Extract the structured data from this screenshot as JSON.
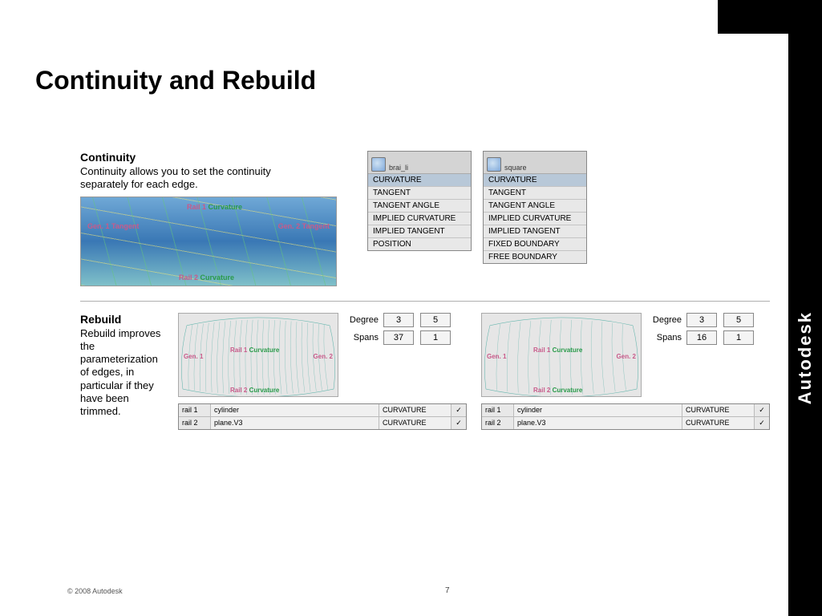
{
  "title": "Continuity and Rebuild",
  "continuity": {
    "heading": "Continuity",
    "text": "Continuity allows you to set the continuity separately for each edge.",
    "labels": {
      "gen1": "Gen. 1 Tangent",
      "gen2": "Gen. 2 Tangent",
      "rail1_a": "Rail 1 ",
      "rail1_b": "Curvature",
      "rail2_a": "Rail 2 ",
      "rail2_b": "Curvature"
    },
    "menus": [
      {
        "name": "brai_li",
        "items": [
          "CURVATURE",
          "TANGENT",
          "TANGENT ANGLE",
          "IMPLIED CURVATURE",
          "IMPLIED TANGENT",
          "POSITION"
        ],
        "selected": 0
      },
      {
        "name": "square",
        "items": [
          "CURVATURE",
          "TANGENT",
          "TANGENT ANGLE",
          "IMPLIED CURVATURE",
          "IMPLIED TANGENT",
          "FIXED BOUNDARY",
          "FREE BOUNDARY"
        ],
        "selected": 0
      }
    ]
  },
  "rebuild": {
    "heading": "Rebuild",
    "text": "Rebuild improves the parameterization of edges, in particular if they have been trimmed.",
    "panels": [
      {
        "degree": [
          "3",
          "5"
        ],
        "spans": [
          "37",
          "1"
        ],
        "rails": [
          {
            "n": "rail 1",
            "obj": "cylinder",
            "mode": "CURVATURE",
            "chk": "✓"
          },
          {
            "n": "rail 2",
            "obj": "plane.V3",
            "mode": "CURVATURE",
            "chk": "✓"
          }
        ],
        "iso_density": 26
      },
      {
        "degree": [
          "3",
          "5"
        ],
        "spans": [
          "16",
          "1"
        ],
        "rails": [
          {
            "n": "rail 1",
            "obj": "cylinder",
            "mode": "CURVATURE",
            "chk": "✓"
          },
          {
            "n": "rail 2",
            "obj": "plane.V3",
            "mode": "CURVATURE",
            "chk": "✓"
          }
        ],
        "iso_density": 14
      }
    ],
    "wire_labels": {
      "gen1": "Gen. 1",
      "gen2": "Gen. 2",
      "rail1_a": "Rail 1 ",
      "rail1_b": "Curvature",
      "rail2_a": "Rail 2 ",
      "rail2_b": "Curvature"
    },
    "ds_labels": {
      "degree": "Degree",
      "spans": "Spans"
    }
  },
  "footer": "© 2008  Autodesk",
  "page": "7",
  "logo": "Autodesk",
  "colors": {
    "accent_pink": "#c85a8a",
    "accent_green": "#2a9a4a",
    "panel_bg": "#e8e8e8",
    "wire_bg": "#e6e6e6"
  }
}
